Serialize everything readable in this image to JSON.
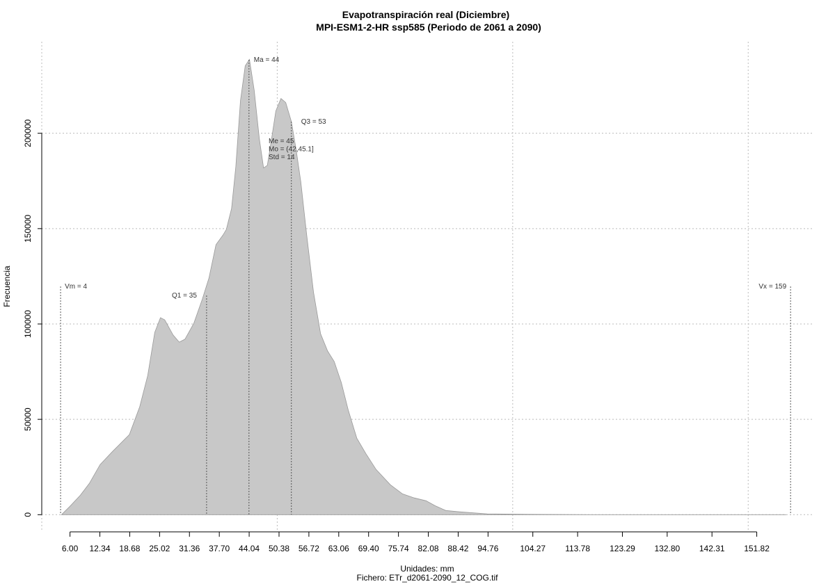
{
  "chart_data": {
    "type": "area",
    "title": "Evapotranspiración real (Diciembre)",
    "subtitle": "MPI-ESM1-2-HR ssp585 (Periodo de 2061 a 2090)",
    "x_label": "Unidades: mm",
    "y_label": "Frecuencia",
    "footer": "Fichero: ETr_d2061-2090_12_COG.tif",
    "color": "#c8c8c8",
    "grid": true,
    "xlim": [
      0,
      164
    ],
    "ylim": [
      -9000,
      248000
    ],
    "x": [
      4.2,
      6,
      8.2,
      10.1,
      12.4,
      14.9,
      18.6,
      20.8,
      22.5,
      24,
      25.2,
      26.1,
      27.9,
      29.2,
      30.4,
      32.3,
      34.1,
      35.5,
      37,
      38.5,
      39.2,
      40.3,
      41.2,
      42.2,
      43.2,
      44.1,
      45.1,
      46.2,
      47.1,
      47.9,
      48.8,
      49.7,
      50.8,
      51.8,
      53,
      54,
      55,
      56.2,
      57.7,
      59.2,
      60.7,
      62.1,
      63.6,
      65.1,
      66.9,
      68.8,
      71,
      74,
      76.6,
      79.1,
      81.6,
      83.5,
      85.8,
      88.7,
      94.6,
      103.5,
      116.8,
      158
    ],
    "values": [
      0,
      4400,
      10200,
      16400,
      26300,
      32800,
      42000,
      56600,
      73000,
      95600,
      103300,
      102200,
      94200,
      90500,
      92000,
      100400,
      113100,
      124100,
      141600,
      146700,
      149600,
      160600,
      182500,
      217200,
      235400,
      238700,
      222600,
      197100,
      181800,
      183200,
      197100,
      211700,
      218200,
      216100,
      206200,
      191600,
      174500,
      147800,
      116800,
      94900,
      85800,
      80300,
      69300,
      54700,
      40100,
      32100,
      23700,
      15700,
      10900,
      8800,
      7300,
      4700,
      2200,
      1500,
      400,
      200,
      0,
      0
    ],
    "xticks": [
      {
        "value": 6.0,
        "label": "6.00"
      },
      {
        "value": 12.34,
        "label": "12.34"
      },
      {
        "value": 18.68,
        "label": "18.68"
      },
      {
        "value": 25.02,
        "label": "25.02"
      },
      {
        "value": 31.36,
        "label": "31.36"
      },
      {
        "value": 37.7,
        "label": "37.70"
      },
      {
        "value": 44.04,
        "label": "44.04"
      },
      {
        "value": 50.38,
        "label": "50.38"
      },
      {
        "value": 56.72,
        "label": "56.72"
      },
      {
        "value": 63.06,
        "label": "63.06"
      },
      {
        "value": 69.4,
        "label": "69.40"
      },
      {
        "value": 75.74,
        "label": "75.74"
      },
      {
        "value": 82.08,
        "label": "82.08"
      },
      {
        "value": 88.42,
        "label": "88.42"
      },
      {
        "value": 94.76,
        "label": "94.76"
      },
      {
        "value": 104.27,
        "label": "104.27"
      },
      {
        "value": 113.78,
        "label": "113.78"
      },
      {
        "value": 123.29,
        "label": "123.29"
      },
      {
        "value": 132.8,
        "label": "132.80"
      },
      {
        "value": 142.31,
        "label": "142.31"
      },
      {
        "value": 151.82,
        "label": "151.82"
      }
    ],
    "xgrid": [
      0,
      50,
      100,
      150
    ],
    "yticks": [
      0,
      50000,
      100000,
      150000,
      200000
    ],
    "markers": [
      {
        "label": "Vm = 4",
        "value": 4
      },
      {
        "label": "Q1 = 35",
        "value": 35
      },
      {
        "label": "Ma = 44",
        "value": 44
      },
      {
        "label": "Q3 = 53",
        "value": 53
      },
      {
        "label": "Vx = 159",
        "value": 159
      }
    ],
    "stats": [
      "Me = 45",
      "Mo = (42,45.1]",
      "Std = 14"
    ]
  }
}
